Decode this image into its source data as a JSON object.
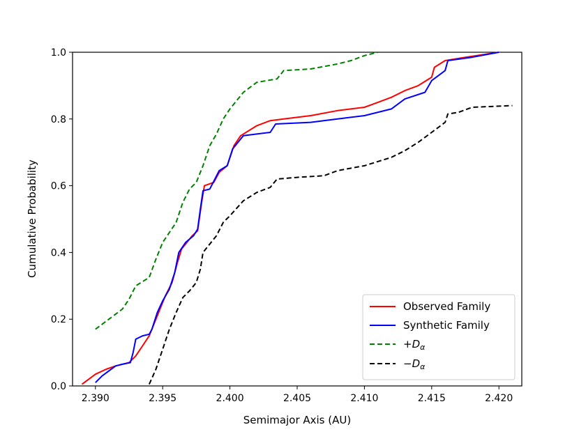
{
  "chart_data": {
    "type": "line",
    "title": "",
    "xlabel": "Semimajor Axis (AU)",
    "ylabel": "Cumulative Probability",
    "xlim": [
      2.3883,
      2.4217
    ],
    "ylim": [
      0.0,
      1.0
    ],
    "xticks": [
      2.39,
      2.395,
      2.4,
      2.405,
      2.41,
      2.415,
      2.42
    ],
    "xtick_labels": [
      "2.390",
      "2.395",
      "2.400",
      "2.405",
      "2.410",
      "2.415",
      "2.420"
    ],
    "yticks": [
      0.0,
      0.2,
      0.4,
      0.6,
      0.8,
      1.0
    ],
    "ytick_labels": [
      "0.0",
      "0.2",
      "0.4",
      "0.6",
      "0.8",
      "1.0"
    ],
    "legend_position": "lower-right",
    "series": [
      {
        "key": "observed",
        "name": "Observed Family",
        "color": "#ff0000",
        "dash": "solid",
        "points": [
          [
            2.389,
            0.005
          ],
          [
            2.3895,
            0.02
          ],
          [
            2.39,
            0.035
          ],
          [
            2.3908,
            0.05
          ],
          [
            2.3915,
            0.06
          ],
          [
            2.3925,
            0.07
          ],
          [
            2.393,
            0.09
          ],
          [
            2.3935,
            0.12
          ],
          [
            2.394,
            0.15
          ],
          [
            2.3944,
            0.19
          ],
          [
            2.3948,
            0.23
          ],
          [
            2.3952,
            0.27
          ],
          [
            2.3957,
            0.31
          ],
          [
            2.3961,
            0.37
          ],
          [
            2.3964,
            0.41
          ],
          [
            2.3968,
            0.43
          ],
          [
            2.3972,
            0.45
          ],
          [
            2.3976,
            0.465
          ],
          [
            2.3979,
            0.55
          ],
          [
            2.3981,
            0.6
          ],
          [
            2.3988,
            0.61
          ],
          [
            2.3992,
            0.64
          ],
          [
            2.3998,
            0.66
          ],
          [
            2.4003,
            0.72
          ],
          [
            2.4008,
            0.75
          ],
          [
            2.402,
            0.78
          ],
          [
            2.403,
            0.795
          ],
          [
            2.404,
            0.8
          ],
          [
            2.406,
            0.81
          ],
          [
            2.408,
            0.825
          ],
          [
            2.41,
            0.835
          ],
          [
            2.411,
            0.85
          ],
          [
            2.412,
            0.865
          ],
          [
            2.413,
            0.885
          ],
          [
            2.414,
            0.9
          ],
          [
            2.415,
            0.925
          ],
          [
            2.4152,
            0.955
          ],
          [
            2.416,
            0.975
          ],
          [
            2.4175,
            0.985
          ],
          [
            2.42,
            1.0
          ]
        ]
      },
      {
        "key": "synthetic",
        "name": "Synthetic Family",
        "color": "#0000ff",
        "dash": "solid",
        "points": [
          [
            2.39,
            0.01
          ],
          [
            2.3905,
            0.03
          ],
          [
            2.391,
            0.045
          ],
          [
            2.3915,
            0.06
          ],
          [
            2.392,
            0.065
          ],
          [
            2.3926,
            0.07
          ],
          [
            2.3928,
            0.1
          ],
          [
            2.393,
            0.14
          ],
          [
            2.3935,
            0.15
          ],
          [
            2.394,
            0.155
          ],
          [
            2.3942,
            0.17
          ],
          [
            2.3946,
            0.22
          ],
          [
            2.395,
            0.255
          ],
          [
            2.3955,
            0.29
          ],
          [
            2.3959,
            0.34
          ],
          [
            2.3962,
            0.4
          ],
          [
            2.3967,
            0.43
          ],
          [
            2.3973,
            0.45
          ],
          [
            2.3976,
            0.47
          ],
          [
            2.3978,
            0.53
          ],
          [
            2.398,
            0.585
          ],
          [
            2.3985,
            0.59
          ],
          [
            2.3992,
            0.645
          ],
          [
            2.3998,
            0.66
          ],
          [
            2.4002,
            0.71
          ],
          [
            2.4008,
            0.74
          ],
          [
            2.401,
            0.75
          ],
          [
            2.403,
            0.76
          ],
          [
            2.4034,
            0.785
          ],
          [
            2.406,
            0.79
          ],
          [
            2.408,
            0.8
          ],
          [
            2.41,
            0.81
          ],
          [
            2.412,
            0.83
          ],
          [
            2.413,
            0.86
          ],
          [
            2.4145,
            0.88
          ],
          [
            2.415,
            0.915
          ],
          [
            2.416,
            0.945
          ],
          [
            2.4162,
            0.975
          ],
          [
            2.418,
            0.985
          ],
          [
            2.42,
            1.0
          ]
        ]
      },
      {
        "key": "plus",
        "name": "+Dα",
        "label_main": "+D",
        "label_sub": "α",
        "color": "#008000",
        "dash": "dashed",
        "points": [
          [
            2.39,
            0.17
          ],
          [
            2.391,
            0.2
          ],
          [
            2.392,
            0.23
          ],
          [
            2.3925,
            0.26
          ],
          [
            2.393,
            0.3
          ],
          [
            2.394,
            0.325
          ],
          [
            2.3945,
            0.38
          ],
          [
            2.395,
            0.43
          ],
          [
            2.396,
            0.49
          ],
          [
            2.3965,
            0.55
          ],
          [
            2.397,
            0.59
          ],
          [
            2.3975,
            0.61
          ],
          [
            2.398,
            0.66
          ],
          [
            2.3985,
            0.72
          ],
          [
            2.399,
            0.755
          ],
          [
            2.3995,
            0.8
          ],
          [
            2.4,
            0.83
          ],
          [
            2.401,
            0.88
          ],
          [
            2.402,
            0.91
          ],
          [
            2.4035,
            0.92
          ],
          [
            2.404,
            0.945
          ],
          [
            2.406,
            0.95
          ],
          [
            2.408,
            0.965
          ],
          [
            2.409,
            0.975
          ],
          [
            2.41,
            0.99
          ],
          [
            2.411,
            1.0
          ]
        ]
      },
      {
        "key": "minus",
        "name": "−Dα",
        "label_main": "−D",
        "label_sub": "α",
        "color": "#000000",
        "dash": "dashed",
        "points": [
          [
            2.394,
            0.005
          ],
          [
            2.3945,
            0.05
          ],
          [
            2.395,
            0.11
          ],
          [
            2.3955,
            0.17
          ],
          [
            2.396,
            0.22
          ],
          [
            2.3965,
            0.265
          ],
          [
            2.397,
            0.285
          ],
          [
            2.3975,
            0.31
          ],
          [
            2.3978,
            0.35
          ],
          [
            2.398,
            0.4
          ],
          [
            2.399,
            0.45
          ],
          [
            2.3995,
            0.49
          ],
          [
            2.4,
            0.51
          ],
          [
            2.401,
            0.555
          ],
          [
            2.402,
            0.58
          ],
          [
            2.403,
            0.595
          ],
          [
            2.4035,
            0.62
          ],
          [
            2.405,
            0.625
          ],
          [
            2.407,
            0.63
          ],
          [
            2.408,
            0.645
          ],
          [
            2.41,
            0.66
          ],
          [
            2.412,
            0.685
          ],
          [
            2.413,
            0.705
          ],
          [
            2.414,
            0.73
          ],
          [
            2.415,
            0.76
          ],
          [
            2.416,
            0.79
          ],
          [
            2.4162,
            0.815
          ],
          [
            2.417,
            0.82
          ],
          [
            2.418,
            0.835
          ],
          [
            2.421,
            0.84
          ]
        ]
      }
    ]
  }
}
